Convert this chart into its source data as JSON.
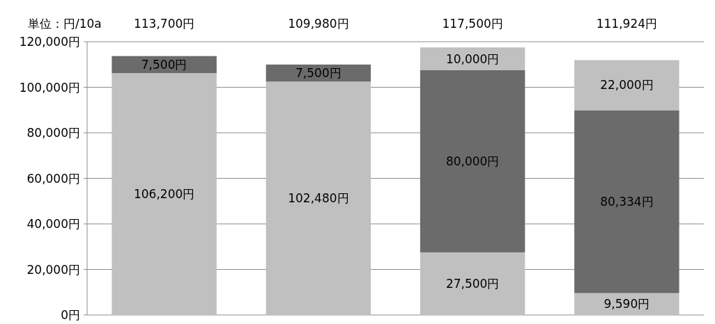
{
  "chart_data": {
    "type": "bar",
    "stacked": true,
    "annotations": [
      "単位：円/10a"
    ],
    "categories": [
      null,
      null,
      null,
      null
    ],
    "series": [
      {
        "color": "#c0c0c0",
        "values": [
          106200,
          102480,
          27500,
          9590
        ],
        "value_labels": [
          "106,200円",
          "102,480円",
          "27,500円",
          "9,590円"
        ]
      },
      {
        "color": "#6b6b6b",
        "values": [
          7500,
          7500,
          80000,
          80334
        ],
        "value_labels": [
          "7,500円",
          "7,500円",
          "80,000円",
          "80,334円"
        ]
      },
      {
        "color": "#c0c0c0",
        "values": [
          null,
          null,
          10000,
          22000
        ],
        "value_labels": [
          null,
          null,
          "10,000円",
          "22,000円"
        ]
      }
    ],
    "totals": [
      "113,700円",
      "109,980円",
      "117,500円",
      "111,924円"
    ],
    "ylim": [
      0,
      120000
    ],
    "yticks": [
      {
        "value": 0,
        "label": "0円"
      },
      {
        "value": 20000,
        "label": "20,000円"
      },
      {
        "value": 40000,
        "label": "40,000円"
      },
      {
        "value": 60000,
        "label": "60,000円"
      },
      {
        "value": 80000,
        "label": "80,000円"
      },
      {
        "value": 100000,
        "label": "100,000円"
      },
      {
        "value": 120000,
        "label": "120,000円"
      }
    ],
    "grid": "y"
  }
}
